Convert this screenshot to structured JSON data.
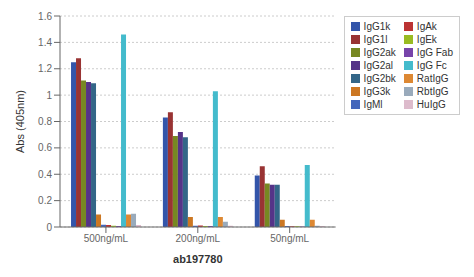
{
  "chart_data": {
    "type": "bar",
    "xlabel": "ab197780",
    "ylabel": "Abs (405nm)",
    "categories": [
      "500ng/mL",
      "200ng/mL",
      "50ng/mL"
    ],
    "series": [
      {
        "name": "IgG1k",
        "color": "#3355AA",
        "values": [
          1.25,
          0.83,
          0.39
        ]
      },
      {
        "name": "IgG1l",
        "color": "#993333",
        "values": [
          1.28,
          0.87,
          0.46
        ]
      },
      {
        "name": "IgG2ak",
        "color": "#778822",
        "values": [
          1.11,
          0.69,
          0.33
        ]
      },
      {
        "name": "IgG2al",
        "color": "#553388",
        "values": [
          1.1,
          0.72,
          0.32
        ]
      },
      {
        "name": "IgG2bk",
        "color": "#336688",
        "values": [
          1.09,
          0.68,
          0.32
        ]
      },
      {
        "name": "IgG3k",
        "color": "#CC7722",
        "values": [
          0.095,
          0.075,
          0.055
        ]
      },
      {
        "name": "IgMl",
        "color": "#4466BB",
        "values": [
          0.018,
          0.01,
          0.008
        ]
      },
      {
        "name": "IgAk",
        "color": "#BB3333",
        "values": [
          0.015,
          0.012,
          0.005
        ]
      },
      {
        "name": "IgEk",
        "color": "#99BB22",
        "values": [
          0.01,
          0.008,
          0.005
        ]
      },
      {
        "name": "IgG Fab",
        "color": "#7744AA",
        "values": [
          0.008,
          0.007,
          0.004
        ]
      },
      {
        "name": "IgG Fc",
        "color": "#44BBCC",
        "values": [
          1.46,
          1.03,
          0.47
        ]
      },
      {
        "name": "RatIgG",
        "color": "#DD8833",
        "values": [
          0.095,
          0.075,
          0.055
        ]
      },
      {
        "name": "RbtIgG",
        "color": "#99AABB",
        "values": [
          0.1,
          0.04,
          0.01
        ]
      },
      {
        "name": "HuIgG",
        "color": "#DDBBCC",
        "values": [
          0.015,
          0.01,
          0.008
        ]
      }
    ],
    "ylim": [
      0,
      1.6
    ],
    "yticks": [
      0,
      0.2,
      0.4,
      0.6,
      0.8,
      1,
      1.2,
      1.4,
      1.6
    ],
    "grid": true,
    "legend": "right"
  }
}
